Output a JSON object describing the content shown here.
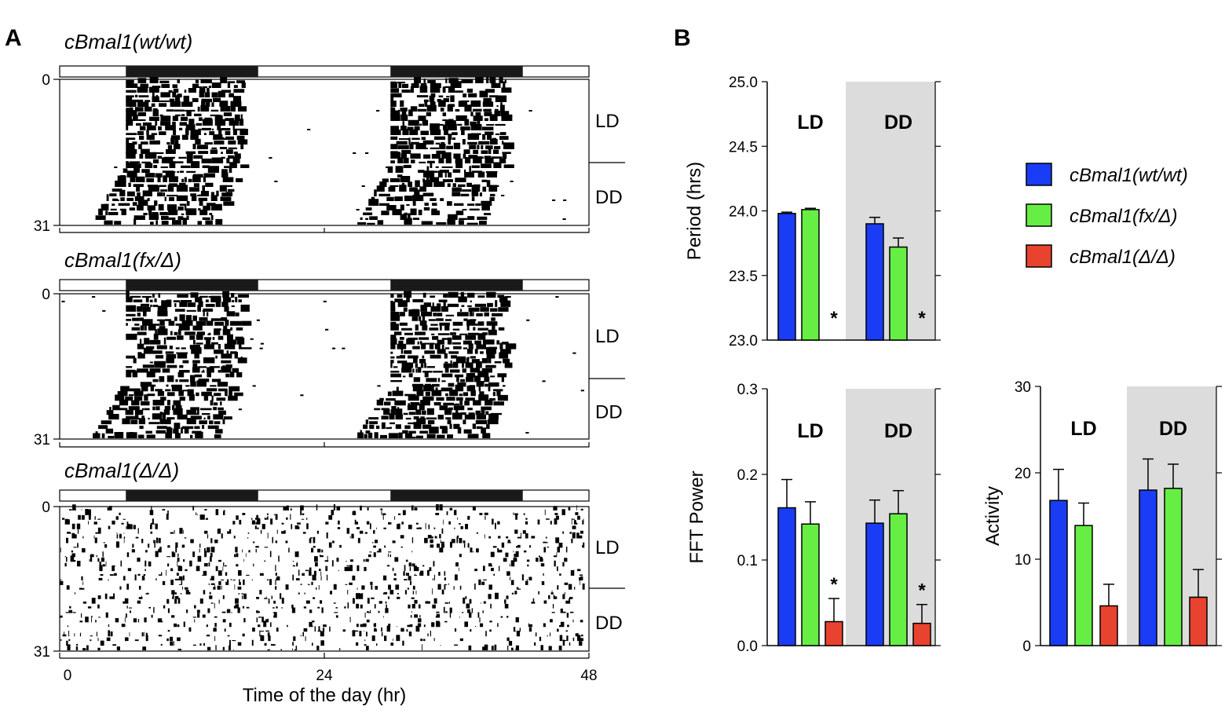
{
  "panels": {
    "A": "A",
    "B": "B"
  },
  "actograms": [
    {
      "genotype": "cBmal1(wt/wt)",
      "row_start": "0",
      "row_end": "31",
      "upper_label": "LD",
      "lower_label": "DD",
      "activity_pattern": "rhythmic"
    },
    {
      "genotype": "cBmal1(fx/Δ)",
      "row_start": "0",
      "row_end": "31",
      "upper_label": "LD",
      "lower_label": "DD",
      "activity_pattern": "rhythmic"
    },
    {
      "genotype": "cBmal1(Δ/Δ)",
      "row_start": "0",
      "row_end": "31",
      "upper_label": "LD",
      "lower_label": "DD",
      "activity_pattern": "arrhythmic"
    }
  ],
  "x_axis": {
    "ticks": [
      "0",
      "24",
      "48"
    ],
    "label": "Time of the day (hr)"
  },
  "legend": [
    {
      "label": "cBmal1(wt/wt)",
      "color": "#1a3cf5"
    },
    {
      "label": "cBmal1(fx/Δ)",
      "color": "#66ee44"
    },
    {
      "label": "cBmal1(Δ/Δ)",
      "color": "#e8432e"
    }
  ],
  "chart_data": [
    {
      "type": "bar",
      "ylabel": "Period (hrs)",
      "ylim": [
        23.0,
        25.0
      ],
      "yticks": [
        "23.0",
        "23.5",
        "24.0",
        "24.5",
        "25.0"
      ],
      "groups": [
        "LD",
        "DD"
      ],
      "series": [
        {
          "name": "cBmal1(wt/wt)",
          "values": [
            23.98,
            23.9
          ],
          "errors": [
            0.01,
            0.05
          ]
        },
        {
          "name": "cBmal1(fx/Δ)",
          "values": [
            24.01,
            23.72
          ],
          "errors": [
            0.01,
            0.07
          ]
        },
        {
          "name": "cBmal1(Δ/Δ)",
          "values": [
            null,
            null
          ],
          "errors": [
            null,
            null
          ]
        }
      ],
      "significance": [
        "*",
        "*"
      ]
    },
    {
      "type": "bar",
      "ylabel": "FFT Power",
      "ylim": [
        0.0,
        0.3
      ],
      "yticks": [
        "0.0",
        "0.1",
        "0.2",
        "0.3"
      ],
      "groups": [
        "LD",
        "DD"
      ],
      "series": [
        {
          "name": "cBmal1(wt/wt)",
          "values": [
            0.161,
            0.143
          ],
          "errors": [
            0.033,
            0.027
          ]
        },
        {
          "name": "cBmal1(fx/Δ)",
          "values": [
            0.142,
            0.154
          ],
          "errors": [
            0.026,
            0.027
          ]
        },
        {
          "name": "cBmal1(Δ/Δ)",
          "values": [
            0.028,
            0.026
          ],
          "errors": [
            0.027,
            0.022
          ]
        }
      ],
      "significance": [
        "*",
        "*"
      ]
    },
    {
      "type": "bar",
      "ylabel": "Activity",
      "ylim": [
        0,
        30
      ],
      "yticks": [
        "0",
        "10",
        "20",
        "30"
      ],
      "groups": [
        "LD",
        "DD"
      ],
      "series": [
        {
          "name": "cBmal1(wt/wt)",
          "values": [
            16.8,
            18.0
          ],
          "errors": [
            3.6,
            3.6
          ]
        },
        {
          "name": "cBmal1(fx/Δ)",
          "values": [
            13.9,
            18.2
          ],
          "errors": [
            2.6,
            2.8
          ]
        },
        {
          "name": "cBmal1(Δ/Δ)",
          "values": [
            4.6,
            5.6
          ],
          "errors": [
            2.5,
            3.2
          ]
        }
      ],
      "significance": [
        "",
        ""
      ]
    }
  ]
}
